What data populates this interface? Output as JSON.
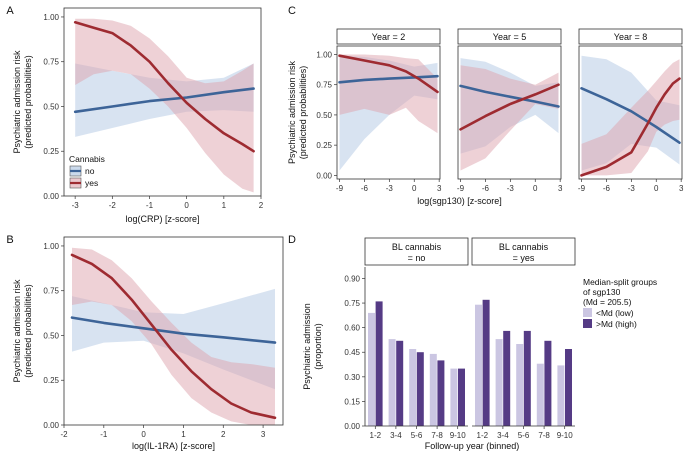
{
  "colors": {
    "no": "#3d6498",
    "yes": "#9e2b31",
    "ribbon_no": "#a9c2df",
    "ribbon_yes": "#dea3ad",
    "bar_low": "#cbc6e2",
    "bar_high": "#553b85"
  },
  "chart_data": [
    {
      "id": "A",
      "letter": "A",
      "type": "line",
      "xlabel": "log(CRP) [z-score]",
      "ylabel": [
        "Psychiatric admission risk",
        "(predicted probabilities)"
      ],
      "xlim": [
        -3.3,
        2.0
      ],
      "ylim": [
        0,
        1.05
      ],
      "xticks": [
        -3,
        -2,
        -1,
        0,
        1,
        2
      ],
      "xtick_labels": [
        "-3",
        "-2",
        "-1",
        "0",
        "1",
        "2"
      ],
      "yticks": [
        0,
        0.25,
        0.5,
        0.75,
        1.0
      ],
      "ytick_labels": [
        "0.00",
        "0.25",
        "0.50",
        "0.75",
        "1.00"
      ],
      "legend": {
        "title": "Cannabis",
        "entries": [
          "no",
          "yes"
        ]
      },
      "series": [
        {
          "name": "no",
          "x": [
            -3,
            -2,
            -1,
            0,
            1,
            1.8
          ],
          "y": [
            0.47,
            0.5,
            0.53,
            0.55,
            0.58,
            0.6
          ],
          "lower": [
            0.33,
            0.38,
            0.43,
            0.47,
            0.48,
            0.47
          ],
          "upper": [
            0.74,
            0.7,
            0.66,
            0.64,
            0.66,
            0.74
          ]
        },
        {
          "name": "yes",
          "x": [
            -3,
            -2.5,
            -2,
            -1.5,
            -1,
            -0.5,
            0,
            0.5,
            1,
            1.5,
            1.8
          ],
          "y": [
            0.97,
            0.94,
            0.91,
            0.84,
            0.75,
            0.63,
            0.52,
            0.43,
            0.35,
            0.29,
            0.25
          ],
          "lower": [
            0.62,
            0.68,
            0.7,
            0.68,
            0.6,
            0.5,
            0.38,
            0.24,
            0.12,
            0.04,
            0.02
          ],
          "upper": [
            0.99,
            0.99,
            0.98,
            0.95,
            0.88,
            0.78,
            0.66,
            0.63,
            0.64,
            0.7,
            0.74
          ]
        }
      ]
    },
    {
      "id": "B",
      "letter": "B",
      "type": "line",
      "xlabel": "log(IL-1RA) [z-score]",
      "ylabel": [
        "Psychiatric admission risk",
        "(predicted probabilities)"
      ],
      "xlim": [
        -2.0,
        3.5
      ],
      "ylim": [
        0,
        1.05
      ],
      "xticks": [
        -2,
        -1,
        0,
        1,
        2,
        3
      ],
      "xtick_labels": [
        "-2",
        "-1",
        "0",
        "1",
        "2",
        "3"
      ],
      "yticks": [
        0,
        0.25,
        0.5,
        0.75,
        1.0
      ],
      "ytick_labels": [
        "0.00",
        "0.25",
        "0.50",
        "0.75",
        "1.00"
      ],
      "series": [
        {
          "name": "no",
          "x": [
            -1.8,
            -1,
            0,
            1,
            2,
            3.3
          ],
          "y": [
            0.6,
            0.57,
            0.54,
            0.51,
            0.49,
            0.46
          ],
          "lower": [
            0.41,
            0.46,
            0.47,
            0.4,
            0.31,
            0.2
          ],
          "upper": [
            0.72,
            0.68,
            0.63,
            0.62,
            0.68,
            0.76
          ]
        },
        {
          "name": "yes",
          "x": [
            -1.8,
            -1.3,
            -0.8,
            -0.3,
            0.2,
            0.7,
            1.2,
            1.7,
            2.2,
            2.7,
            3.3
          ],
          "y": [
            0.95,
            0.9,
            0.82,
            0.7,
            0.56,
            0.42,
            0.3,
            0.2,
            0.12,
            0.07,
            0.04
          ],
          "lower": [
            0.67,
            0.69,
            0.67,
            0.58,
            0.45,
            0.28,
            0.15,
            0.07,
            0.02,
            0.0,
            0.0
          ],
          "upper": [
            0.99,
            0.98,
            0.92,
            0.82,
            0.69,
            0.57,
            0.46,
            0.38,
            0.35,
            0.34,
            0.32
          ]
        }
      ]
    },
    {
      "id": "C",
      "letter": "C",
      "type": "line",
      "xlabel": "log(sgp130) [z-score]",
      "ylabel": [
        "Psychiatric admission risk",
        "(predicted probabilities)"
      ],
      "xlim": [
        -9.3,
        3.1
      ],
      "ylim": [
        -0.03,
        1.07
      ],
      "xticks": [
        -9,
        -6,
        -3,
        0,
        3
      ],
      "xtick_labels": [
        "-9",
        "-6",
        "-3",
        "0",
        "3"
      ],
      "yticks": [
        0,
        0.25,
        0.5,
        0.75,
        1.0
      ],
      "ytick_labels": [
        "0.00",
        "0.25",
        "0.50",
        "0.75",
        "1.00"
      ],
      "facets": [
        {
          "strip": "Year = 2",
          "series": [
            {
              "name": "no",
              "x": [
                -9,
                -6,
                -3,
                0,
                2.8
              ],
              "y": [
                0.77,
                0.79,
                0.8,
                0.81,
                0.82
              ],
              "lower": [
                0.04,
                0.3,
                0.5,
                0.66,
                0.63
              ],
              "upper": [
                0.99,
                0.98,
                0.95,
                0.9,
                0.93
              ]
            },
            {
              "name": "yes",
              "x": [
                -9,
                -6,
                -3,
                -1,
                0.5,
                2.8
              ],
              "y": [
                0.99,
                0.95,
                0.91,
                0.86,
                0.8,
                0.69
              ],
              "lower": [
                0.5,
                0.55,
                0.5,
                0.56,
                0.45,
                0.35
              ],
              "upper": [
                1.0,
                1.0,
                0.99,
                0.97,
                0.96,
                0.8
              ]
            }
          ]
        },
        {
          "strip": "Year = 5",
          "series": [
            {
              "name": "no",
              "x": [
                -9,
                -6,
                -3,
                0,
                2.8
              ],
              "y": [
                0.74,
                0.69,
                0.65,
                0.61,
                0.57
              ],
              "lower": [
                0.18,
                0.24,
                0.4,
                0.5,
                0.35
              ],
              "upper": [
                0.97,
                0.94,
                0.85,
                0.74,
                0.77
              ]
            },
            {
              "name": "yes",
              "x": [
                -9,
                -6,
                -3,
                0,
                2.8
              ],
              "y": [
                0.38,
                0.49,
                0.59,
                0.67,
                0.75
              ],
              "lower": [
                0.04,
                0.14,
                0.37,
                0.59,
                0.55
              ],
              "upper": [
                0.91,
                0.88,
                0.8,
                0.75,
                0.85
              ]
            }
          ]
        },
        {
          "strip": "Year = 8",
          "series": [
            {
              "name": "no",
              "x": [
                -9,
                -6,
                -3,
                0,
                2.8
              ],
              "y": [
                0.72,
                0.63,
                0.53,
                0.4,
                0.27
              ],
              "lower": [
                0.04,
                0.1,
                0.26,
                0.23,
                0.09
              ],
              "upper": [
                0.99,
                0.96,
                0.85,
                0.62,
                0.58
              ]
            },
            {
              "name": "yes",
              "x": [
                -9,
                -6,
                -3,
                -1,
                0,
                1,
                2,
                2.8
              ],
              "y": [
                0.0,
                0.07,
                0.19,
                0.43,
                0.56,
                0.67,
                0.76,
                0.8
              ],
              "lower": [
                0.0,
                0.0,
                0.02,
                0.2,
                0.36,
                0.42,
                0.45,
                0.46
              ],
              "upper": [
                0.26,
                0.34,
                0.56,
                0.7,
                0.78,
                0.86,
                0.93,
                0.96
              ]
            }
          ]
        }
      ]
    },
    {
      "id": "D",
      "letter": "D",
      "type": "bar",
      "xlabel": "Follow-up year (binned)",
      "ylabel": [
        "Psychiatric admission",
        "(proportion)"
      ],
      "ylim": [
        0,
        0.97
      ],
      "yticks": [
        0,
        0.15,
        0.3,
        0.45,
        0.6,
        0.75,
        0.9
      ],
      "ytick_labels": [
        "0.00",
        "0.15",
        "0.30",
        "0.45",
        "0.60",
        "0.75",
        "0.90"
      ],
      "categories": [
        "1-2",
        "3-4",
        "5-6",
        "7-8",
        "9-10"
      ],
      "legend": {
        "title": [
          "Median-split groups",
          "of sgp130",
          "(Md = 205.5)"
        ],
        "entries": [
          "<Md (low)",
          ">Md (high)"
        ]
      },
      "facets": [
        {
          "strip": [
            "BL cannabis",
            "= no"
          ],
          "series": [
            {
              "name": "<Md (low)",
              "values": [
                0.69,
                0.53,
                0.47,
                0.44,
                0.35
              ]
            },
            {
              "name": ">Md (high)",
              "values": [
                0.76,
                0.52,
                0.45,
                0.4,
                0.35
              ]
            }
          ]
        },
        {
          "strip": [
            "BL cannabis",
            "= yes"
          ],
          "series": [
            {
              "name": "<Md (low)",
              "values": [
                0.74,
                0.53,
                0.5,
                0.38,
                0.37
              ]
            },
            {
              "name": ">Md (high)",
              "values": [
                0.77,
                0.58,
                0.58,
                0.52,
                0.47
              ]
            }
          ]
        }
      ]
    }
  ]
}
